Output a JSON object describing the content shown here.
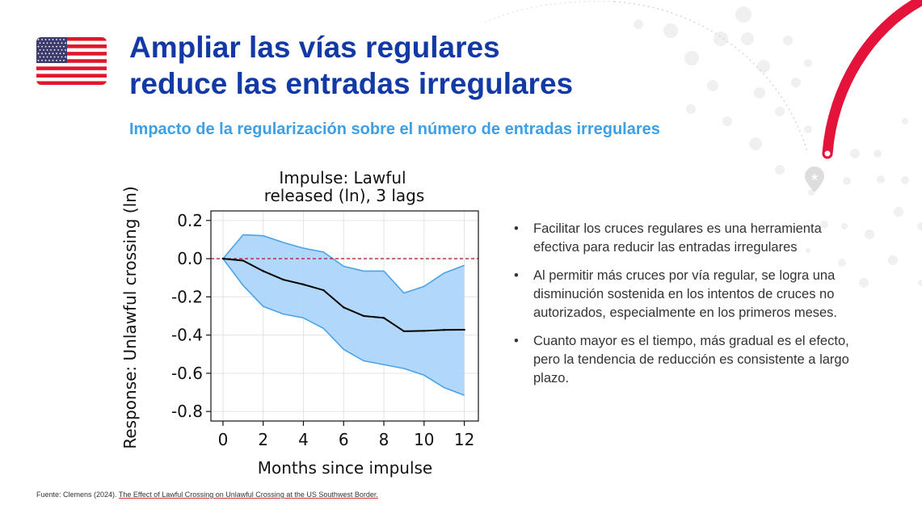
{
  "header": {
    "title_line1": "Ampliar las vías regulares",
    "title_line2": "reduce las entradas irregulares",
    "subtitle": "Impacto de la regularización sobre el número de entradas irregulares"
  },
  "flag": {
    "icon": "us-flag-icon"
  },
  "colors": {
    "title": "#1239a6",
    "subtitle": "#3d9fe6",
    "accent_arc": "#e4133a",
    "band_fill": "#a9d3fb",
    "band_edge": "#4aa3e8",
    "zero_line": "#c0203e",
    "response_line": "#000000"
  },
  "chart_data": {
    "type": "line",
    "title_line1": "Impulse: Lawful",
    "title_line2": "released (ln), 3 lags",
    "xlabel": "Months since impulse",
    "ylabel": "Response: Unlawful crossing (ln)",
    "x": [
      0,
      1,
      2,
      3,
      4,
      5,
      6,
      7,
      8,
      9,
      10,
      11,
      12
    ],
    "series": [
      {
        "role": "response",
        "values": [
          0.0,
          -0.01,
          -0.065,
          -0.11,
          -0.135,
          -0.165,
          -0.255,
          -0.3,
          -0.31,
          -0.38,
          -0.378,
          -0.373,
          -0.372
        ]
      },
      {
        "role": "upper",
        "values": [
          0.0,
          0.125,
          0.12,
          0.085,
          0.055,
          0.035,
          -0.04,
          -0.065,
          -0.065,
          -0.18,
          -0.145,
          -0.075,
          -0.035
        ]
      },
      {
        "role": "lower",
        "values": [
          0.0,
          -0.14,
          -0.25,
          -0.29,
          -0.31,
          -0.365,
          -0.475,
          -0.535,
          -0.555,
          -0.575,
          -0.61,
          -0.675,
          -0.715
        ]
      }
    ],
    "reference_line_y": 0,
    "xlim": [
      -0.6,
      12.7
    ],
    "ylim": [
      -0.85,
      0.25
    ],
    "xticks": [
      "0",
      "2",
      "4",
      "6",
      "8",
      "10",
      "12"
    ],
    "xtick_values": [
      0,
      2,
      4,
      6,
      8,
      10,
      12
    ],
    "yticks": [
      "0.2",
      "0.0",
      "-0.2",
      "-0.4",
      "-0.6",
      "-0.8"
    ],
    "ytick_values": [
      0.2,
      0.0,
      -0.2,
      -0.4,
      -0.6,
      -0.8
    ],
    "grid": true,
    "legend": "none"
  },
  "bullets": [
    "Facilitar los cruces regulares es una herramienta efectiva para reducir las entradas irregulares",
    "Al permitir más cruces por vía regular, se logra una disminución sostenida en los intentos de cruces no autorizados, especialmente en los primeros meses.",
    "Cuanto mayor es el tiempo, más gradual es el efecto, pero la tendencia de reducción es consistente a largo plazo."
  ],
  "source": {
    "prefix": "Fuente: Clemens (2024). ",
    "reference": "The Effect of Lawful Crossing on Unlawful Crossing at the US Southwest Border."
  }
}
